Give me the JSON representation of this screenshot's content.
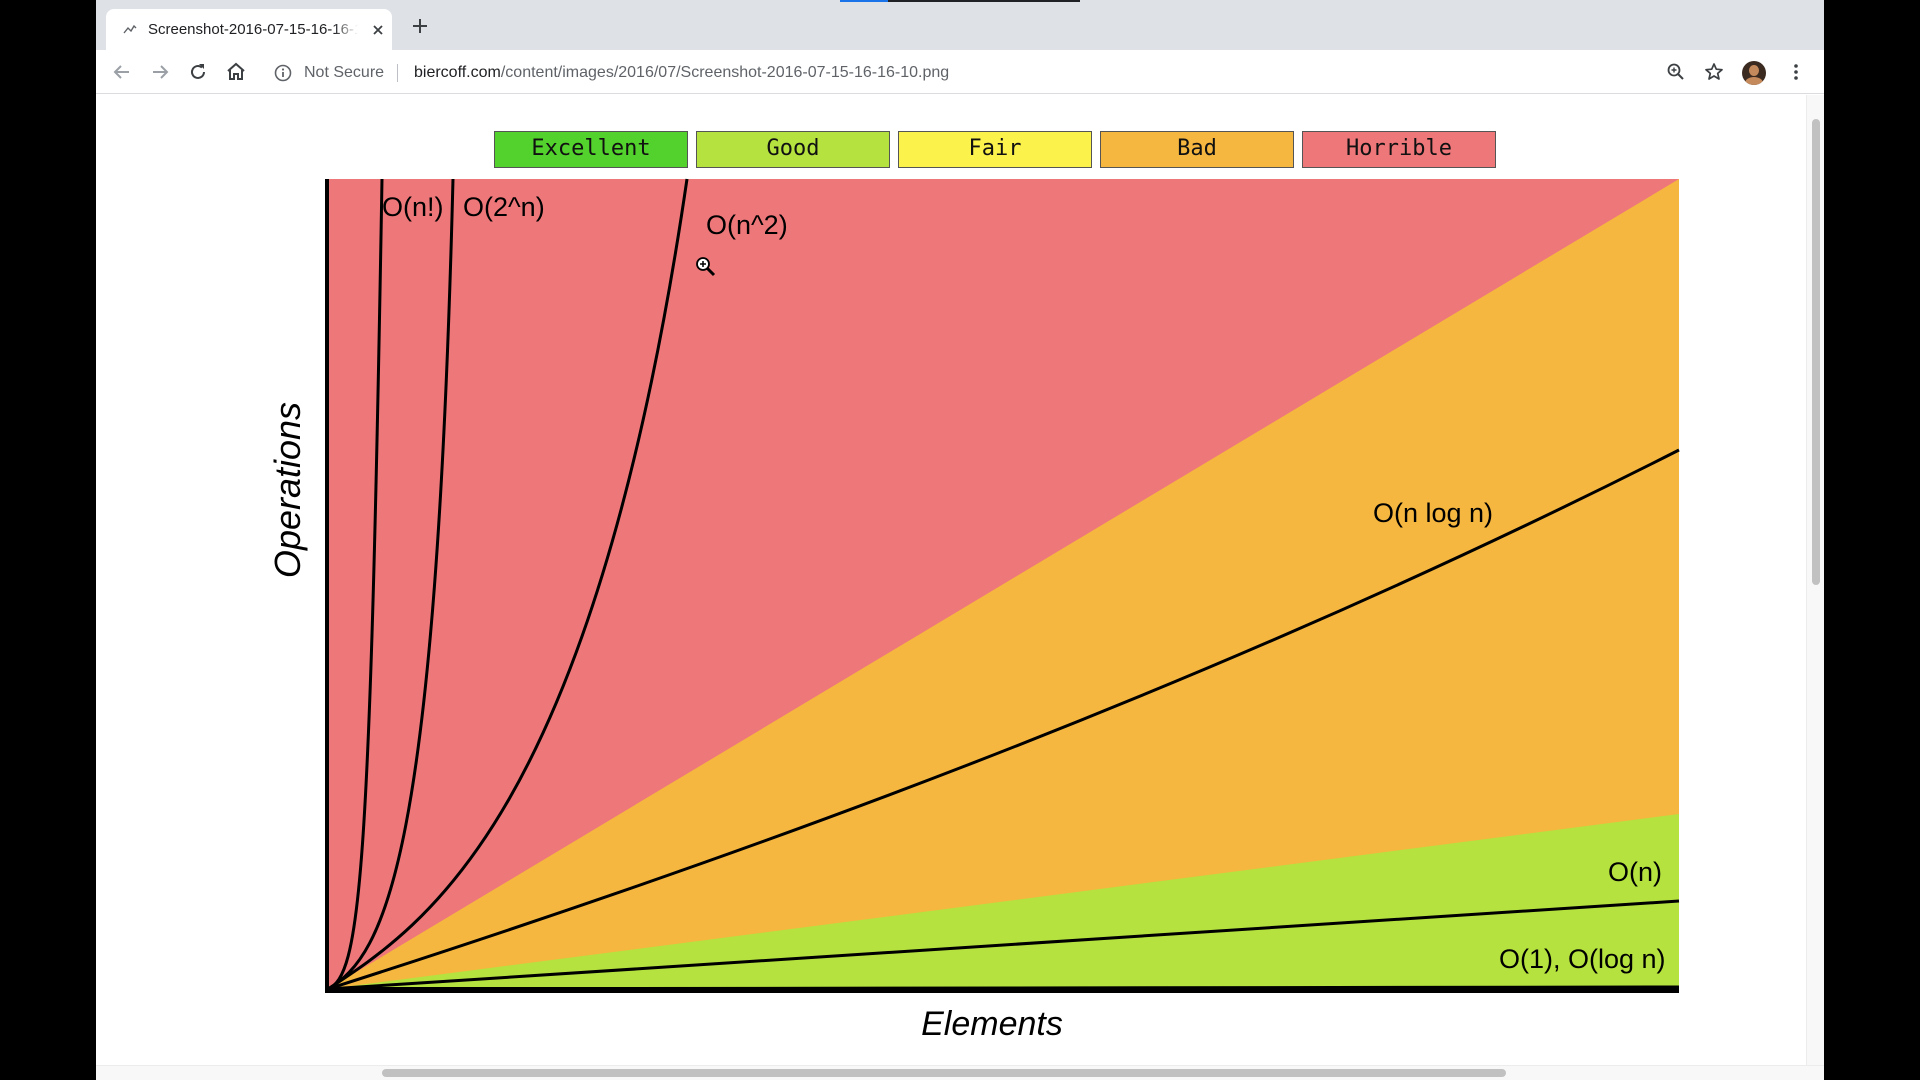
{
  "browser": {
    "tab": {
      "title": "Screenshot-2016-07-15-16-16-10.png",
      "favicon": "image-favicon-icon"
    },
    "omnibox": {
      "security_label": "Not Secure",
      "url_host": "biercoff.com",
      "url_path": "/content/images/2016/07/Screenshot-2016-07-15-16-16-10.png"
    },
    "icons": [
      "back-icon",
      "forward-icon",
      "reload-icon",
      "home-icon",
      "info-icon",
      "zoom-icon",
      "star-icon",
      "profile-avatar",
      "menu-icon",
      "close-icon",
      "plus-icon"
    ]
  },
  "legend": [
    {
      "label": "Excellent",
      "color": "#53d12c"
    },
    {
      "label": "Good",
      "color": "#b5e23f"
    },
    {
      "label": "Fair",
      "color": "#fbf24b"
    },
    {
      "label": "Bad",
      "color": "#f5b73f"
    },
    {
      "label": "Horrible",
      "color": "#ee777a"
    }
  ],
  "chart_data": {
    "type": "line",
    "xlabel": "Elements",
    "ylabel": "Operations",
    "grid": false,
    "legend_placement": "top",
    "regions": [
      {
        "name": "Horrible",
        "color": "#ee777a"
      },
      {
        "name": "Bad",
        "color": "#f5b73f"
      },
      {
        "name": "Good",
        "color": "#b5e23f"
      }
    ],
    "series": [
      {
        "name": "O(n!)",
        "complexity": "factorial"
      },
      {
        "name": "O(2^n)",
        "complexity": "exponential"
      },
      {
        "name": "O(n^2)",
        "complexity": "quadratic"
      },
      {
        "name": "O(n log n)",
        "complexity": "linearithmic"
      },
      {
        "name": "O(n)",
        "complexity": "linear"
      },
      {
        "name": "O(1), O(log n)",
        "complexity": "constant/logarithmic"
      }
    ]
  }
}
